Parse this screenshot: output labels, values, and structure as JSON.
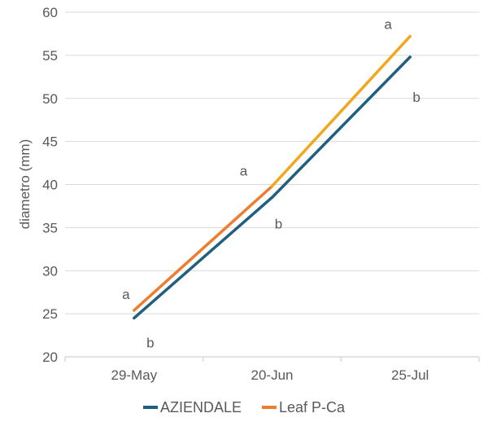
{
  "chart_data": {
    "type": "line",
    "title": "",
    "xlabel": "",
    "ylabel": "diametro (mm)",
    "ylim": [
      20,
      60
    ],
    "yticks": [
      20,
      25,
      30,
      35,
      40,
      45,
      50,
      55,
      60
    ],
    "grid": true,
    "legend_position": "bottom",
    "categories": [
      "29-May",
      "20-Jun",
      "25-Jul"
    ],
    "series": [
      {
        "name": "AZIENDALE",
        "color": "#1F5F7F",
        "values": [
          24.5,
          38.5,
          54.8
        ],
        "annotations": [
          "b",
          "b",
          "b"
        ]
      },
      {
        "name": "Leaf P-Ca",
        "color": "#ED7D31",
        "segment_colors": [
          "#ED7D31",
          "#F0A81E"
        ],
        "values": [
          25.4,
          39.8,
          57.2
        ],
        "annotations": [
          "a",
          "a",
          "a"
        ]
      }
    ]
  },
  "legend": {
    "items": [
      {
        "label": "AZIENDALE",
        "color": "#1F5F7F"
      },
      {
        "label": "Leaf P-Ca",
        "color": "#ED7D31"
      }
    ]
  }
}
